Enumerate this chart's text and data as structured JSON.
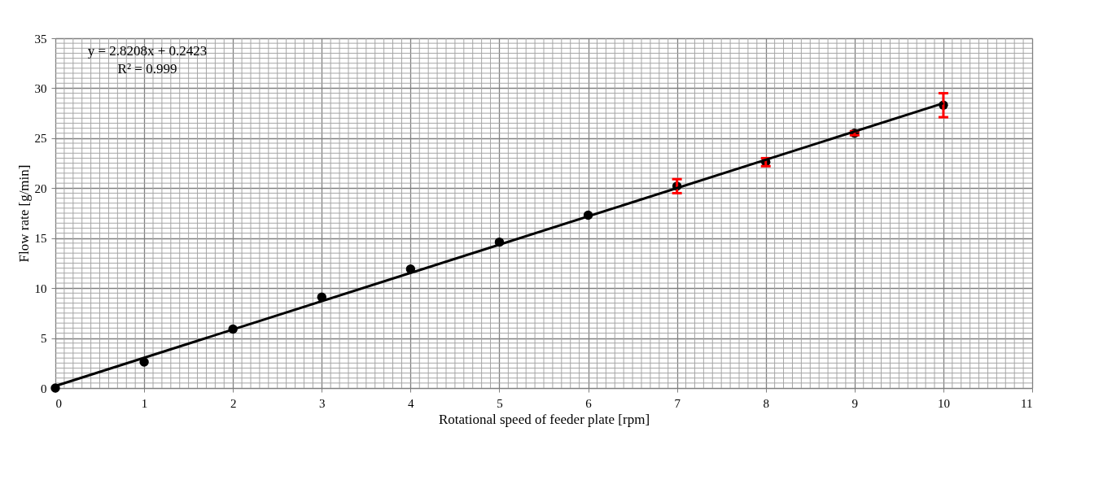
{
  "chart_data": {
    "type": "scatter",
    "xlabel": "Rotational speed of feeder plate [rpm]",
    "ylabel": "Flow rate [g/min]",
    "annotations": [
      "y = 2.8208x + 0.2423",
      "R² = 0.999"
    ],
    "x": [
      0,
      1,
      2,
      3,
      4,
      5,
      6,
      7,
      8,
      9,
      10
    ],
    "series": [
      {
        "color": "#000000",
        "values": [
          0,
          2.6,
          5.9,
          9.1,
          11.9,
          14.6,
          17.3,
          20.2,
          22.6,
          25.5,
          28.3
        ],
        "errors": [
          null,
          null,
          null,
          null,
          null,
          null,
          null,
          0.7,
          0.4,
          0.2,
          1.2
        ]
      },
      {
        "type": "line",
        "color": "#000000",
        "marker": "none",
        "x": [
          0,
          10
        ],
        "values": [
          0.2,
          28.5
        ]
      }
    ],
    "marker": "circle",
    "line_style": "solid",
    "xlim": [
      0,
      11
    ],
    "xticks": [
      0,
      1,
      2,
      3,
      4,
      5,
      6,
      7,
      8,
      9,
      10,
      11
    ],
    "ylim": [
      0,
      35
    ],
    "yticks": [
      0,
      5,
      10,
      15,
      20,
      25,
      30,
      35
    ],
    "grid": true
  }
}
